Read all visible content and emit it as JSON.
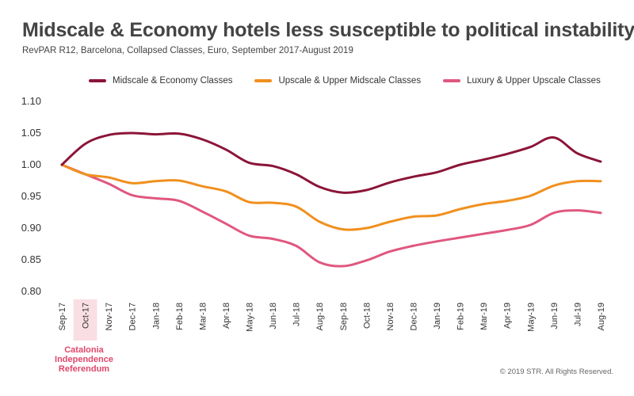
{
  "header": {
    "title": "Midscale & Economy hotels less susceptible to political instability",
    "subtitle": "RevPAR R12, Barcelona, Collapsed Classes, Euro, September 2017-August 2019"
  },
  "annotation": {
    "lines": [
      "Catalonia",
      "Independence",
      "Referendum"
    ],
    "category": "Oct-17",
    "color": "#e0466b",
    "highlight_color": "#f9dfe4"
  },
  "footer": {
    "copyright": "© 2019 STR. All Rights Reserved."
  },
  "chart_data": {
    "type": "line",
    "title": "Midscale & Economy hotels less susceptible to political instability",
    "subtitle": "RevPAR R12, Barcelona, Collapsed Classes, Euro, September 2017-August 2019",
    "xlabel": "",
    "ylabel": "",
    "ylim": [
      0.8,
      1.1
    ],
    "yticks": [
      "1.10",
      "1.05",
      "1.00",
      "0.95",
      "0.90",
      "0.85",
      "0.80"
    ],
    "grid": false,
    "legend_position": "top",
    "categories": [
      "Sep-17",
      "Oct-17",
      "Nov-17",
      "Dec-17",
      "Jan-18",
      "Feb-18",
      "Mar-18",
      "Apr-18",
      "May-18",
      "Jun-18",
      "Jul-18",
      "Aug-18",
      "Sep-18",
      "Oct-18",
      "Nov-18",
      "Dec-18",
      "Jan-19",
      "Feb-19",
      "Mar-19",
      "Apr-19",
      "May-19",
      "Jun-19",
      "Jul-19",
      "Aug-19"
    ],
    "series": [
      {
        "name": "Midscale & Economy Classes",
        "color": "#8b1538",
        "values": [
          1.0,
          1.033,
          1.047,
          1.05,
          1.048,
          1.049,
          1.04,
          1.024,
          1.003,
          0.998,
          0.985,
          0.965,
          0.956,
          0.96,
          0.972,
          0.981,
          0.988,
          1.0,
          1.008,
          1.017,
          1.028,
          1.043,
          1.018,
          1.005
        ]
      },
      {
        "name": "Upscale & Upper Midscale Classes",
        "color": "#f0901e",
        "values": [
          1.0,
          0.985,
          0.98,
          0.971,
          0.974,
          0.975,
          0.966,
          0.958,
          0.941,
          0.94,
          0.934,
          0.91,
          0.898,
          0.9,
          0.91,
          0.918,
          0.92,
          0.93,
          0.938,
          0.943,
          0.951,
          0.967,
          0.974,
          0.974
        ]
      },
      {
        "name": "Luxury & Upper Upscale Classes",
        "color": "#e0577e",
        "values": [
          1.0,
          0.985,
          0.97,
          0.952,
          0.947,
          0.943,
          0.926,
          0.907,
          0.888,
          0.883,
          0.872,
          0.846,
          0.84,
          0.849,
          0.863,
          0.872,
          0.879,
          0.885,
          0.891,
          0.897,
          0.905,
          0.924,
          0.928,
          0.924
        ]
      }
    ]
  }
}
